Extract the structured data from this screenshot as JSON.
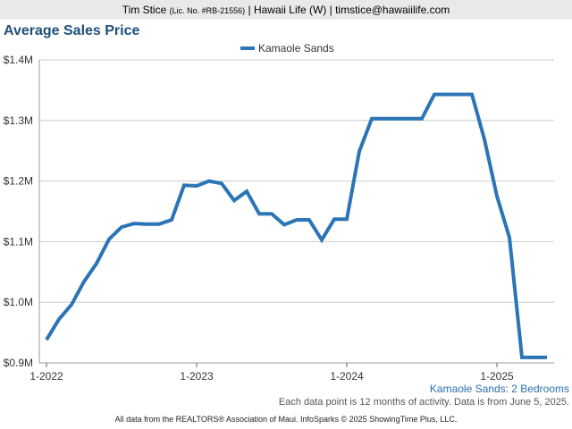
{
  "header": {
    "name": "Tim Stice",
    "license": "(Lic. No. #RB-21556)",
    "rest": "| Hawaii Life (W) | timstice@hawaiilife.com"
  },
  "caption": "Kamaole Sands: 2 Bedrooms",
  "note": "Each data point is 12 months of activity. Data is from June 5, 2025.",
  "footer": "All data from the REALTORS® Association of Maui. InfoSparks © 2025 ShowingTime Plus, LLC.",
  "colors": {
    "series": "#2b74b6",
    "title": "#1f4f7a",
    "grid": "#cccccc",
    "header_bg": "#e9e9e9"
  },
  "chart_data": {
    "type": "line",
    "title": "Average Sales Price",
    "legend_position": "top-center",
    "grid": true,
    "ylim": [
      900000,
      1400000
    ],
    "yticks": [
      900000,
      1000000,
      1100000,
      1200000,
      1300000,
      1400000
    ],
    "ytick_labels": [
      "$0.9M",
      "$1.0M",
      "$1.1M",
      "$1.2M",
      "$1.3M",
      "$1.4M"
    ],
    "xticks": [
      "2022-01",
      "2023-01",
      "2024-01",
      "2025-01"
    ],
    "xtick_labels": [
      "1-2022",
      "1-2023",
      "1-2024",
      "1-2025"
    ],
    "series": [
      {
        "name": "Kamaole Sands",
        "x": [
          "2022-01",
          "2022-02",
          "2022-03",
          "2022-04",
          "2022-05",
          "2022-06",
          "2022-07",
          "2022-08",
          "2022-09",
          "2022-10",
          "2022-11",
          "2022-12",
          "2023-01",
          "2023-02",
          "2023-03",
          "2023-04",
          "2023-05",
          "2023-06",
          "2023-07",
          "2023-08",
          "2023-09",
          "2023-10",
          "2023-11",
          "2023-12",
          "2024-01",
          "2024-02",
          "2024-03",
          "2024-04",
          "2024-05",
          "2024-06",
          "2024-07",
          "2024-08",
          "2024-09",
          "2024-10",
          "2024-11",
          "2024-12",
          "2025-01",
          "2025-02",
          "2025-03",
          "2025-04",
          "2025-05"
        ],
        "values": [
          938000,
          972000,
          996000,
          1034000,
          1064000,
          1104000,
          1124000,
          1130000,
          1129000,
          1129000,
          1136000,
          1193000,
          1192000,
          1200000,
          1196000,
          1168000,
          1183000,
          1146000,
          1146000,
          1128000,
          1136000,
          1136000,
          1103000,
          1137000,
          1137000,
          1249000,
          1303000,
          1303000,
          1303000,
          1303000,
          1303000,
          1343000,
          1343000,
          1343000,
          1343000,
          1269000,
          1175000,
          1107000,
          909000,
          909000,
          909000
        ]
      }
    ]
  }
}
